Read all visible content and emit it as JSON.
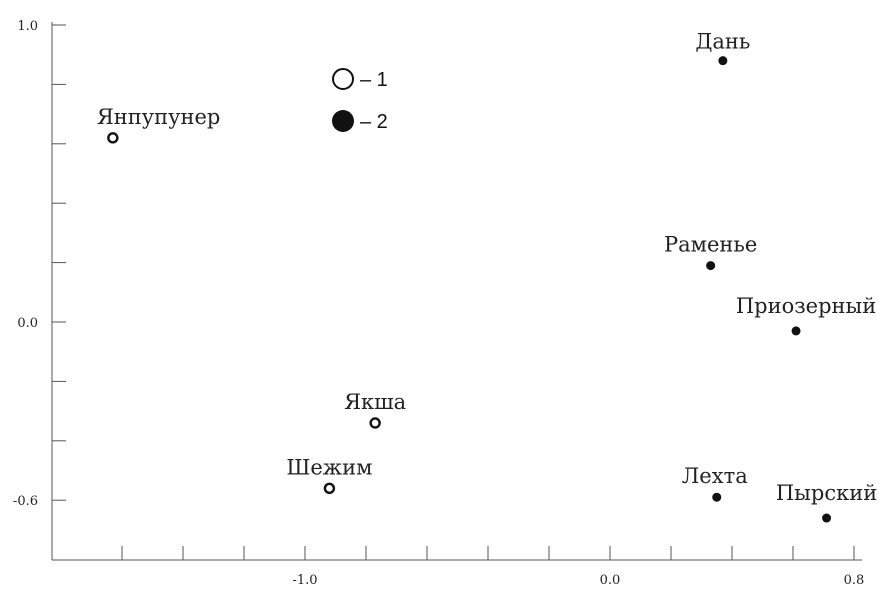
{
  "chart_data": {
    "type": "scatter",
    "title": "",
    "xlabel": "",
    "ylabel": "",
    "xlim": [
      -1.7,
      0.85
    ],
    "ylim": [
      -0.8,
      1.0
    ],
    "x_tick_labels": [
      {
        "value": -1.0,
        "label": "-1.0"
      },
      {
        "value": 0.0,
        "label": "0.0"
      },
      {
        "value": 0.8,
        "label": "0.8"
      }
    ],
    "y_tick_labels": [
      {
        "value": 1.0,
        "label": "1.0"
      },
      {
        "value": 0.0,
        "label": "0.0"
      },
      {
        "value": -0.6,
        "label": "-0.6"
      }
    ],
    "x_minor_ticks": [
      -1.6,
      -1.4,
      -1.2,
      -1.0,
      -0.8,
      -0.6,
      -0.4,
      -0.2,
      0.0,
      0.2,
      0.4,
      0.6,
      0.8
    ],
    "y_minor_ticks": [
      1.0,
      0.8,
      0.6,
      0.4,
      0.2,
      0.0,
      -0.2,
      -0.4,
      -0.6
    ],
    "grid": false,
    "legend_position": "top-left",
    "series": [
      {
        "name": "1",
        "marker": "open-circle",
        "points": [
          {
            "label": "Янпупунер",
            "x": -1.63,
            "y": 0.62
          },
          {
            "label": "Якша",
            "x": -0.77,
            "y": -0.34
          },
          {
            "label": "Шежим",
            "x": -0.92,
            "y": -0.56
          }
        ]
      },
      {
        "name": "2",
        "marker": "filled-circle",
        "points": [
          {
            "label": "Дань",
            "x": 0.37,
            "y": 0.88
          },
          {
            "label": "Раменье",
            "x": 0.33,
            "y": 0.19
          },
          {
            "label": "Приозерный",
            "x": 0.61,
            "y": -0.03
          },
          {
            "label": "Лехта",
            "x": 0.35,
            "y": -0.59
          },
          {
            "label": "Пырский",
            "x": 0.71,
            "y": -0.66
          }
        ]
      }
    ]
  },
  "legend": [
    {
      "marker": "open-circle",
      "label": "– 1"
    },
    {
      "marker": "filled-circle",
      "label": "– 2"
    }
  ],
  "colors": {
    "ink": "#111111",
    "axis": "#555555"
  }
}
